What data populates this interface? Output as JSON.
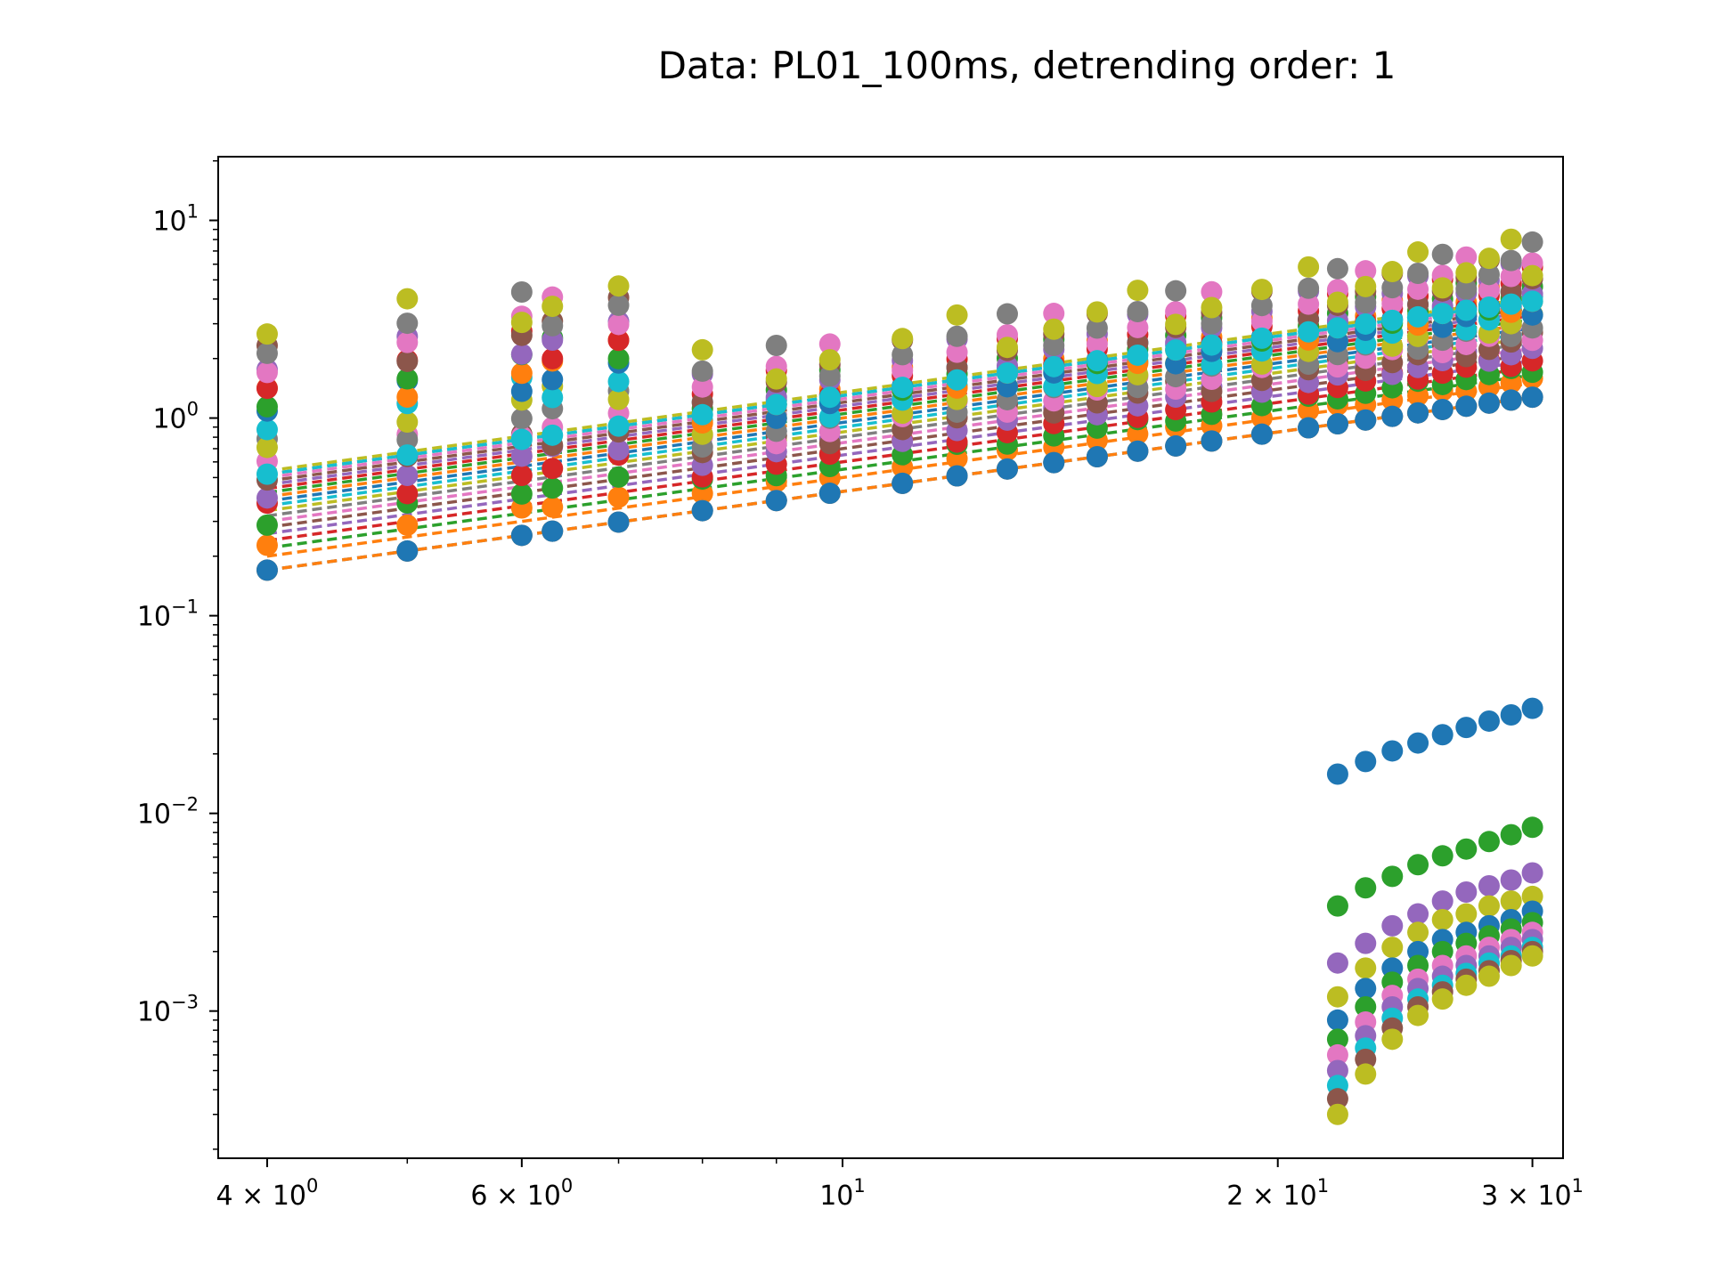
{
  "chart_data": {
    "type": "scatter",
    "title": "Data: PL01_100ms, detrending order: 1",
    "xlabel": "",
    "ylabel": "",
    "xscale": "log",
    "yscale": "log",
    "xlim": [
      3.7,
      31.5
    ],
    "ylim": [
      0.00018,
      21
    ],
    "grid": false,
    "legend": "none",
    "x_ticks": [
      {
        "value": 4,
        "label": "4 × 10",
        "exp": "0"
      },
      {
        "value": 6,
        "label": "6 × 10",
        "exp": "0"
      },
      {
        "value": 10,
        "label": "10",
        "exp": "1"
      },
      {
        "value": 20,
        "label": "2 × 10",
        "exp": "1"
      },
      {
        "value": 30,
        "label": "3 × 10",
        "exp": "1"
      }
    ],
    "x_minor_ticks": [
      5,
      7,
      8,
      9
    ],
    "y_ticks": [
      {
        "value": 10,
        "label": "10",
        "exp": "1"
      },
      {
        "value": 1,
        "label": "10",
        "exp": "0"
      },
      {
        "value": 0.1,
        "label": "10",
        "exp": "−1"
      },
      {
        "value": 0.01,
        "label": "10",
        "exp": "−2"
      },
      {
        "value": 0.001,
        "label": "10",
        "exp": "−3"
      }
    ],
    "scales": [
      4,
      5,
      6,
      6.3,
      7,
      8,
      9,
      9.8,
      11,
      12,
      13,
      14,
      15,
      16,
      17,
      18,
      19.5,
      21,
      22,
      23,
      24,
      25,
      26,
      27,
      28,
      29,
      30
    ],
    "colors": [
      "#1f77b4",
      "#ff7f0e",
      "#2ca02c",
      "#d62728",
      "#9467bd",
      "#8c564b",
      "#e377c2",
      "#7f7f7f",
      "#bcbd22",
      "#17becf"
    ],
    "upper_band": {
      "fit_values_at_min_scale": [
        0.17,
        0.2,
        0.22,
        0.24,
        0.26,
        0.28,
        0.3,
        0.32,
        0.34,
        0.36,
        0.38,
        0.4,
        0.42,
        0.44,
        0.46,
        0.48,
        0.5,
        0.52,
        0.54
      ],
      "slope": 1.0,
      "point_spread": [
        0.85,
        1.4,
        2.0,
        3.0
      ]
    },
    "highlight_series": [
      {
        "color": "#ff7f0e",
        "y_at_4": 0.17,
        "slope": 1.0,
        "fit_line": true
      },
      {
        "color": "#1f77b4",
        "y_at_4": 0.17,
        "slope": 1.0,
        "fit_line": false
      },
      {
        "color": "#17becf",
        "y_at_4": 0.52,
        "slope": 1.0,
        "fit_line": true
      }
    ],
    "lower_band": {
      "x": [
        22,
        23,
        24,
        25,
        26,
        27,
        28,
        29,
        30
      ],
      "series": [
        {
          "color": "#1f77b4",
          "y": [
            0.0158,
            0.0183,
            0.0207,
            0.0227,
            0.025,
            0.0272,
            0.0293,
            0.0315,
            0.034
          ]
        },
        {
          "color": "#2ca02c",
          "y": [
            0.0034,
            0.0042,
            0.0048,
            0.0055,
            0.0061,
            0.0066,
            0.0072,
            0.0078,
            0.0085
          ]
        },
        {
          "color": "#9467bd",
          "y": [
            0.00175,
            0.0022,
            0.0027,
            0.0031,
            0.0036,
            0.004,
            0.0043,
            0.0046,
            0.005
          ]
        },
        {
          "color": "#bcbd22",
          "y": [
            0.00118,
            0.00165,
            0.0021,
            0.0025,
            0.0029,
            0.0031,
            0.0034,
            0.0036,
            0.0038
          ]
        },
        {
          "color": "#1f77b4",
          "y": [
            0.0009,
            0.0013,
            0.00165,
            0.002,
            0.0023,
            0.0025,
            0.0027,
            0.0029,
            0.0032
          ]
        },
        {
          "color": "#2ca02c",
          "y": [
            0.00072,
            0.00105,
            0.0014,
            0.0017,
            0.002,
            0.0022,
            0.0024,
            0.0026,
            0.0028
          ]
        },
        {
          "color": "#e377c2",
          "y": [
            0.0006,
            0.00088,
            0.0012,
            0.00145,
            0.0017,
            0.0019,
            0.0021,
            0.0023,
            0.0025
          ]
        },
        {
          "color": "#9467bd",
          "y": [
            0.0005,
            0.00075,
            0.00105,
            0.0013,
            0.0015,
            0.0017,
            0.0019,
            0.0021,
            0.0023
          ]
        },
        {
          "color": "#17becf",
          "y": [
            0.00042,
            0.00065,
            0.00092,
            0.00115,
            0.00135,
            0.00155,
            0.00175,
            0.0019,
            0.0021
          ]
        },
        {
          "color": "#8c564b",
          "y": [
            0.00036,
            0.00057,
            0.00082,
            0.00105,
            0.00125,
            0.00145,
            0.0016,
            0.0018,
            0.002
          ]
        },
        {
          "color": "#bcbd22",
          "y": [
            0.0003,
            0.00048,
            0.00072,
            0.00095,
            0.00115,
            0.00135,
            0.0015,
            0.0017,
            0.0019
          ]
        }
      ]
    }
  }
}
